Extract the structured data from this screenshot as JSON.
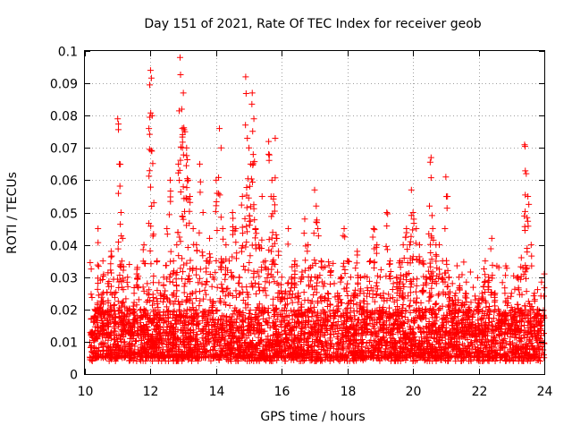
{
  "chart_data": {
    "type": "scatter",
    "title": "Day 151 of 2021, Rate Of TEC Index for receiver geob",
    "xlabel": "GPS time / hours",
    "ylabel": "ROTI / TECUs",
    "xlim": [
      10,
      24
    ],
    "ylim": [
      0,
      0.1
    ],
    "x_ticks": [
      10,
      12,
      14,
      16,
      18,
      20,
      22,
      24
    ],
    "x_tick_labels": [
      "10",
      "12",
      "14",
      "16",
      "18",
      "20",
      "22",
      "24"
    ],
    "y_ticks": [
      0,
      0.01,
      0.02,
      0.03,
      0.04,
      0.05,
      0.06,
      0.07,
      0.08,
      0.09,
      0.1
    ],
    "y_tick_labels": [
      "0",
      "0.01",
      "0.02",
      "0.03",
      "0.04",
      "0.05",
      "0.06",
      "0.07",
      "0.08",
      "0.09",
      "0.1"
    ],
    "grid": true,
    "marker": "+",
    "color": "#ff0000",
    "series": [
      {
        "name": "ROTI",
        "x": [
          10.2,
          10.3,
          10.35,
          10.4,
          10.5,
          10.55,
          10.6,
          10.7,
          10.75,
          10.8,
          10.9,
          11.0,
          11.05,
          11.1,
          11.15,
          11.2,
          11.3,
          11.4,
          11.5,
          11.6,
          11.7,
          11.8,
          11.9,
          11.95,
          12.0,
          12.05,
          12.1,
          12.2,
          12.3,
          12.4,
          12.5,
          12.6,
          12.7,
          12.8,
          12.85,
          12.9,
          12.95,
          13.0,
          13.05,
          13.1,
          13.15,
          13.2,
          13.3,
          13.4,
          13.5,
          13.6,
          13.7,
          13.8,
          13.9,
          14.0,
          14.1,
          14.15,
          14.2,
          14.3,
          14.4,
          14.5,
          14.6,
          14.7,
          14.8,
          14.9,
          14.95,
          15.0,
          15.05,
          15.1,
          15.15,
          15.2,
          15.3,
          15.4,
          15.5,
          15.6,
          15.7,
          15.75,
          15.8,
          15.85,
          15.9,
          16.0,
          16.1,
          16.2,
          16.3,
          16.4,
          16.5,
          16.6,
          16.7,
          16.8,
          16.9,
          17.0,
          17.05,
          17.1,
          17.2,
          17.3,
          17.4,
          17.5,
          17.6,
          17.7,
          17.8,
          17.9,
          18.0,
          18.1,
          18.2,
          18.3,
          18.4,
          18.5,
          18.6,
          18.7,
          18.8,
          18.9,
          19.0,
          19.1,
          19.2,
          19.3,
          19.4,
          19.5,
          19.6,
          19.7,
          19.8,
          19.9,
          19.95,
          20.0,
          20.1,
          20.2,
          20.3,
          20.4,
          20.5,
          20.55,
          20.6,
          20.7,
          20.8,
          20.9,
          21.0,
          21.05,
          21.1,
          21.2,
          21.3,
          21.4,
          21.5,
          21.6,
          21.7,
          21.8,
          21.9,
          22.0,
          22.1,
          22.2,
          22.3,
          22.4,
          22.5,
          22.6,
          22.7,
          22.8,
          22.9,
          23.0,
          23.1,
          23.2,
          23.3,
          23.4,
          23.45,
          23.5,
          23.6,
          23.7,
          23.8,
          23.9,
          24.0
        ],
        "y": [
          0.013,
          0.02,
          0.011,
          0.045,
          0.022,
          0.035,
          0.015,
          0.028,
          0.012,
          0.038,
          0.025,
          0.079,
          0.065,
          0.05,
          0.042,
          0.018,
          0.03,
          0.015,
          0.025,
          0.033,
          0.02,
          0.04,
          0.028,
          0.076,
          0.094,
          0.08,
          0.053,
          0.035,
          0.025,
          0.03,
          0.045,
          0.06,
          0.035,
          0.04,
          0.065,
          0.098,
          0.082,
          0.087,
          0.075,
          0.07,
          0.06,
          0.055,
          0.045,
          0.04,
          0.065,
          0.05,
          0.035,
          0.042,
          0.03,
          0.06,
          0.076,
          0.07,
          0.045,
          0.04,
          0.035,
          0.05,
          0.045,
          0.03,
          0.055,
          0.092,
          0.073,
          0.07,
          0.065,
          0.087,
          0.079,
          0.045,
          0.04,
          0.055,
          0.035,
          0.072,
          0.06,
          0.055,
          0.073,
          0.042,
          0.038,
          0.03,
          0.025,
          0.045,
          0.03,
          0.035,
          0.025,
          0.03,
          0.048,
          0.04,
          0.03,
          0.057,
          0.052,
          0.045,
          0.035,
          0.028,
          0.025,
          0.032,
          0.028,
          0.025,
          0.03,
          0.045,
          0.035,
          0.03,
          0.025,
          0.038,
          0.03,
          0.025,
          0.03,
          0.035,
          0.045,
          0.04,
          0.03,
          0.025,
          0.05,
          0.035,
          0.028,
          0.03,
          0.035,
          0.04,
          0.045,
          0.04,
          0.057,
          0.05,
          0.045,
          0.04,
          0.035,
          0.03,
          0.052,
          0.067,
          0.045,
          0.04,
          0.04,
          0.035,
          0.061,
          0.055,
          0.03,
          0.028,
          0.025,
          0.03,
          0.022,
          0.025,
          0.02,
          0.018,
          0.015,
          0.022,
          0.025,
          0.035,
          0.03,
          0.042,
          0.025,
          0.02,
          0.018,
          0.025,
          0.022,
          0.025,
          0.02,
          0.03,
          0.036,
          0.071,
          0.062,
          0.055,
          0.04,
          0.025,
          0.02,
          0.018,
          0.031
        ],
        "noise_floor": [
          0.005,
          0.02
        ],
        "bulk_range": [
          0.004,
          0.035
        ]
      }
    ]
  }
}
